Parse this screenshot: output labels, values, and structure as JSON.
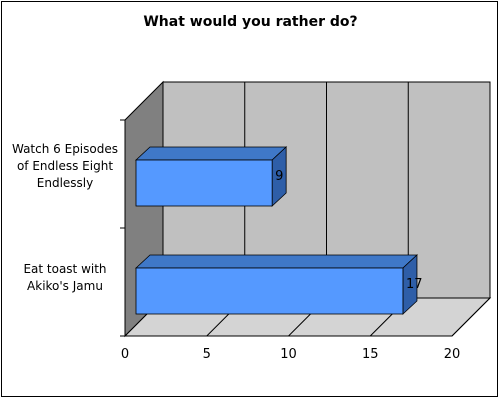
{
  "chart_data": {
    "type": "bar",
    "orientation": "horizontal",
    "three_d": true,
    "title": "What would you rather do?",
    "categories": [
      "Watch 6 Episodes of Endless Eight Endlessly",
      "Eat toast with Akiko's Jamu"
    ],
    "category_label_lines": [
      [
        "Watch 6 Episodes",
        "of Endless Eight",
        "Endlessly"
      ],
      [
        "Eat toast with",
        "Akiko's Jamu"
      ]
    ],
    "values": [
      9,
      17
    ],
    "data_labels": [
      "9",
      "17"
    ],
    "xlim": [
      0,
      20
    ],
    "x_ticks": [
      0,
      5,
      10,
      15,
      20
    ],
    "x_tick_labels": [
      "0",
      "5",
      "10",
      "15",
      "20"
    ],
    "xlabel": "",
    "ylabel": "",
    "grid": true,
    "legend": "none",
    "colors": {
      "bar_front": "#5599ff",
      "bar_top": "#3f78c8",
      "bar_side": "#2e5ea8",
      "back_wall": "#c0c0c0",
      "side_wall": "#808080",
      "floor": "#d4d4d4",
      "grid": "#000000"
    }
  }
}
